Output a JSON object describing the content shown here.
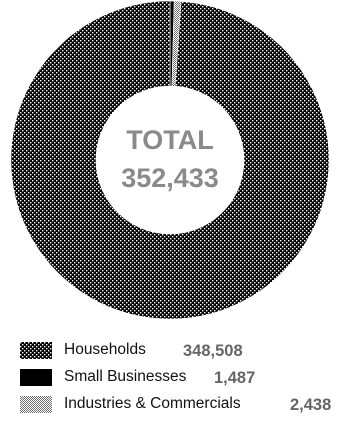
{
  "colors": {
    "households": "#000000",
    "small_businesses": "#000000",
    "industries": "#8c8c8c",
    "center_text": "#8a8a8a",
    "value_text": "#666666"
  },
  "chart_data": {
    "type": "pie",
    "style": "donut",
    "center_label": "TOTAL",
    "total": "352,433",
    "series": [
      {
        "name": "Households",
        "value": 348508,
        "display_value": "348,508",
        "pattern": "dotted"
      },
      {
        "name": "Small Businesses",
        "value": 1487,
        "display_value": "1,487",
        "pattern": "solid"
      },
      {
        "name": "Industries & Commercials",
        "value": 2438,
        "display_value": "2,438",
        "pattern": "fine-checker"
      }
    ],
    "legend_position": "bottom"
  }
}
